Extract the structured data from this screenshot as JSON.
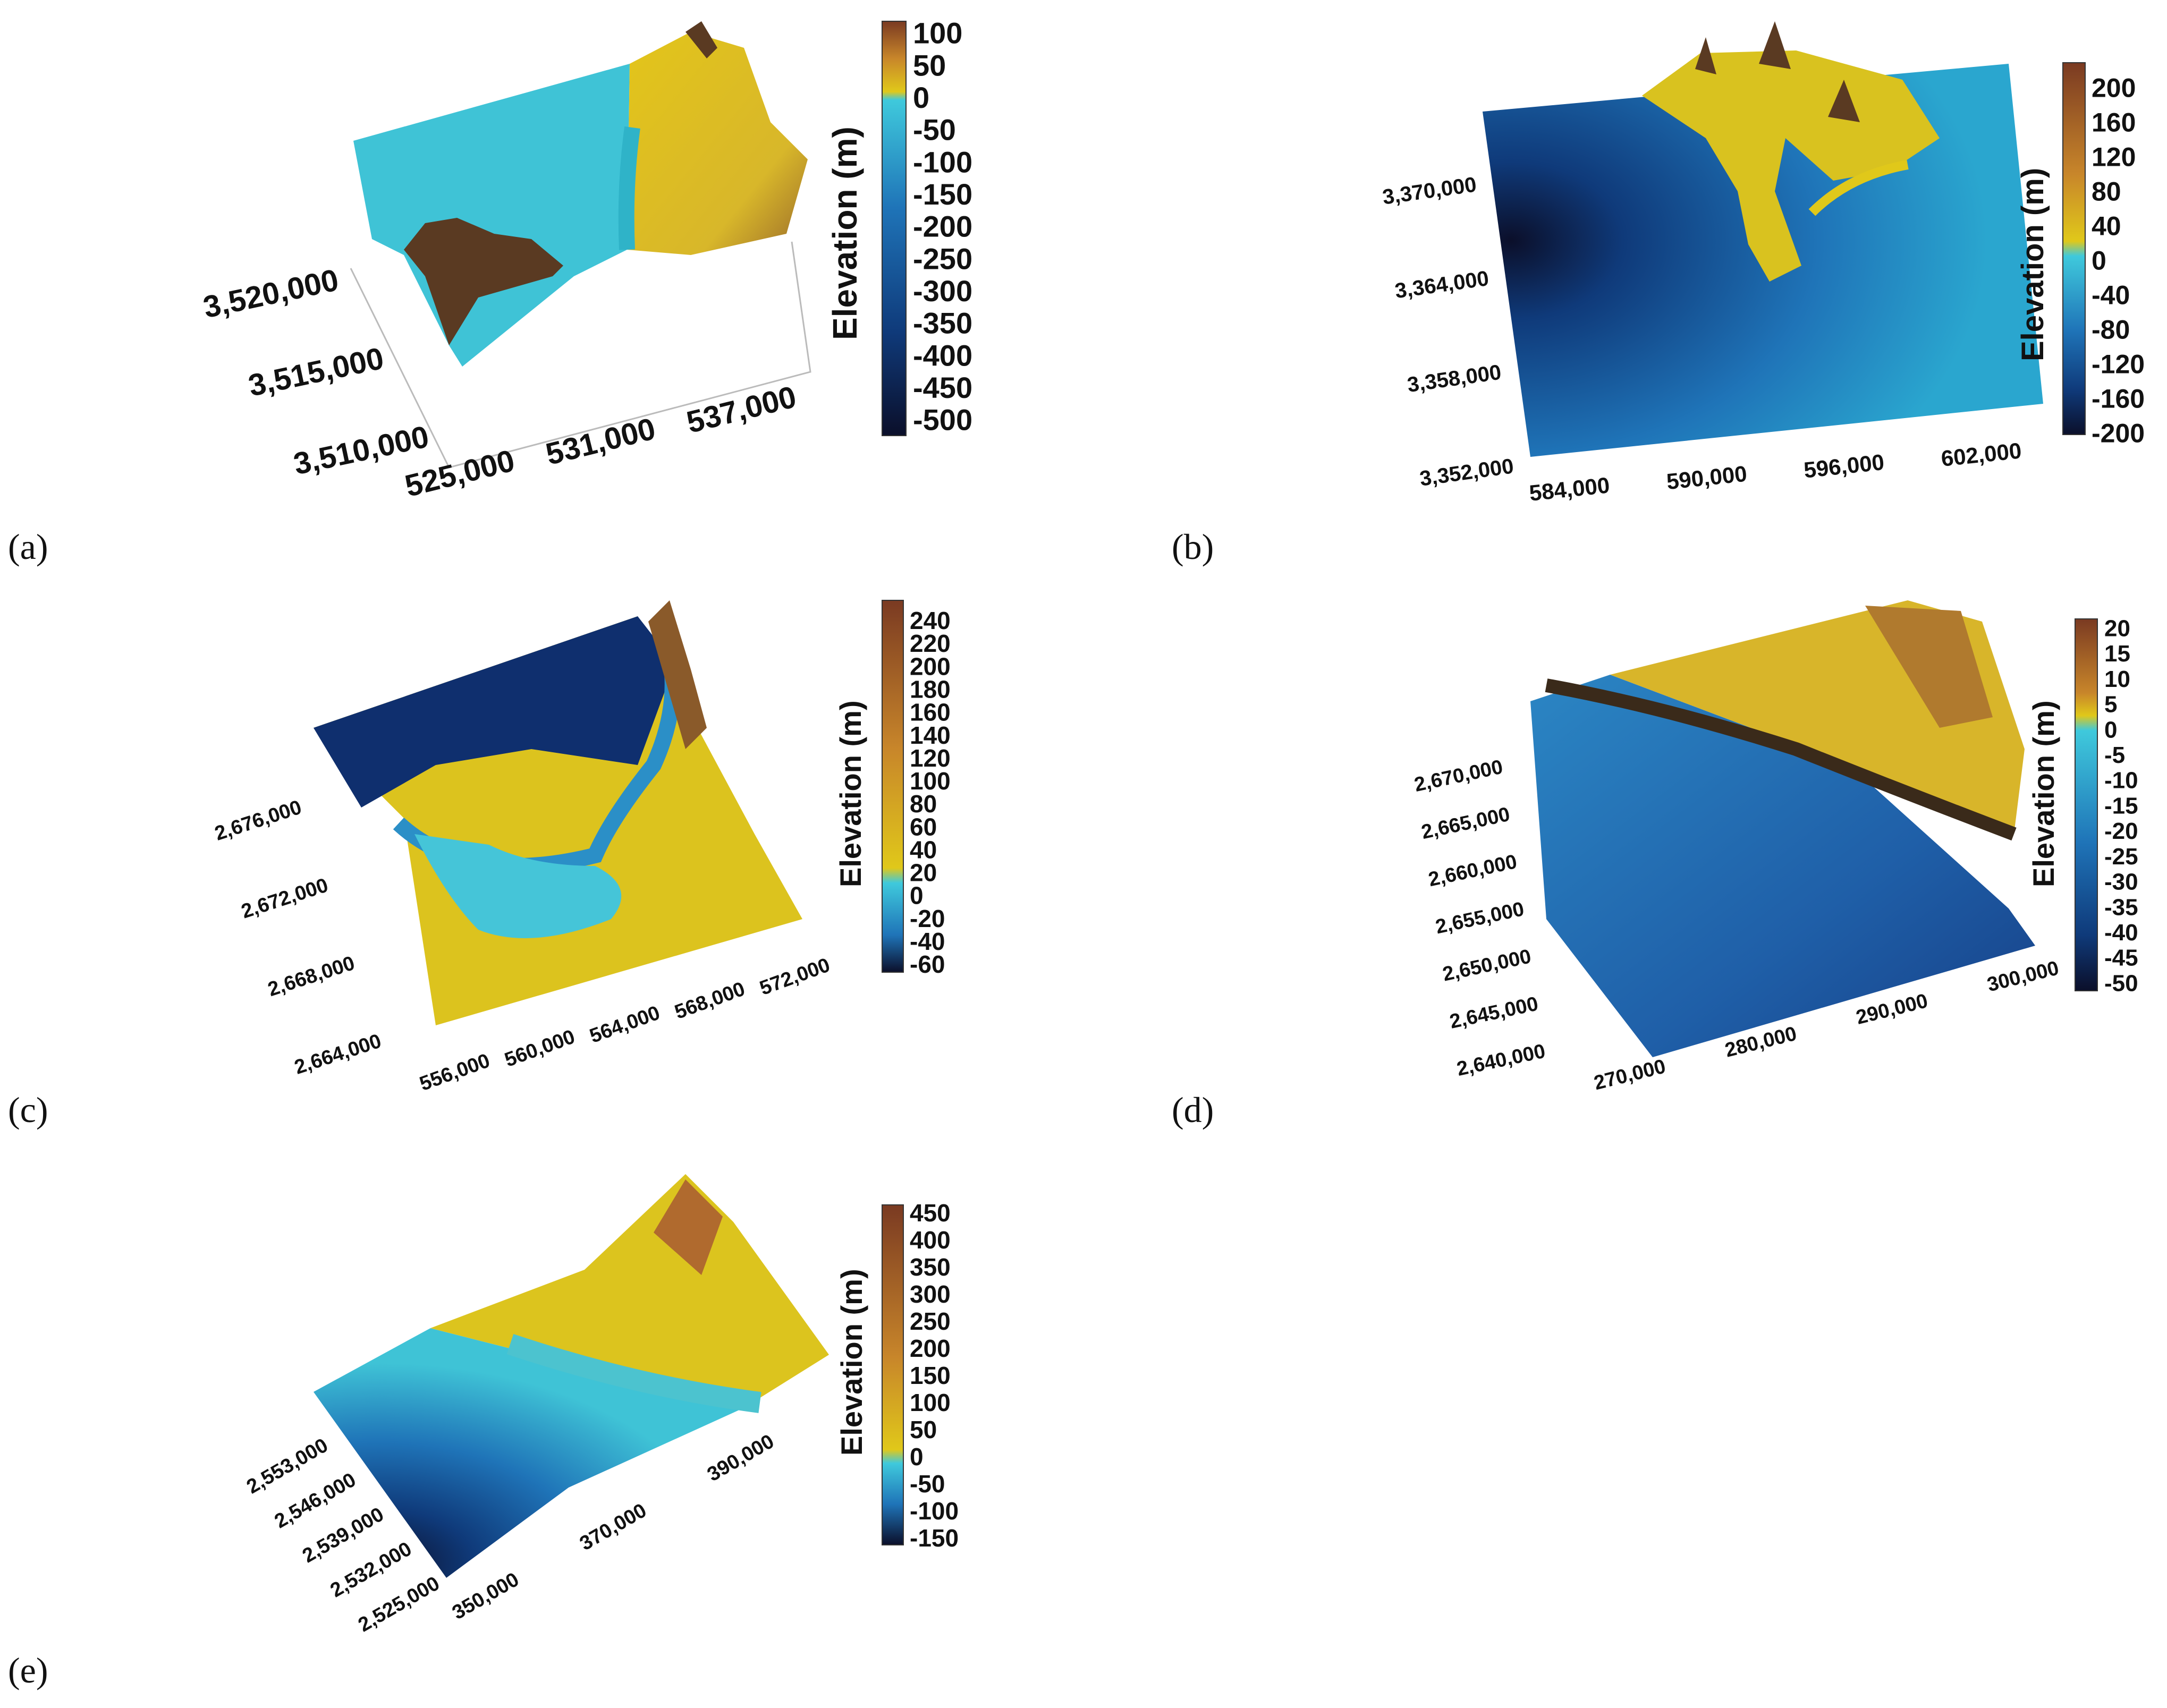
{
  "figure": {
    "colorbar_title": "Elevation (m)",
    "panels": [
      {
        "label": "(a)",
        "y_ticks": [
          "3,520,000",
          "3,515,000",
          "3,510,000"
        ],
        "x_ticks": [
          "525,000",
          "531,000",
          "537,000"
        ],
        "colorbar_ticks": [
          "100",
          "50",
          "0",
          "-50",
          "-100",
          "-150",
          "-200",
          "-250",
          "-300",
          "-350",
          "-400",
          "-450",
          "-500"
        ]
      },
      {
        "label": "(b)",
        "y_ticks": [
          "3,370,000",
          "3,364,000",
          "3,358,000",
          "3,352,000"
        ],
        "x_ticks": [
          "584,000",
          "590,000",
          "596,000",
          "602,000"
        ],
        "colorbar_ticks": [
          "200",
          "160",
          "120",
          "80",
          "40",
          "0",
          "-40",
          "-80",
          "-120",
          "-160",
          "-200"
        ]
      },
      {
        "label": "(c)",
        "y_ticks": [
          "2,676,000",
          "2,672,000",
          "2,668,000",
          "2,664,000"
        ],
        "x_ticks": [
          "556,000",
          "560,000",
          "564,000",
          "568,000",
          "572,000"
        ],
        "colorbar_ticks": [
          "240",
          "220",
          "200",
          "180",
          "160",
          "140",
          "120",
          "100",
          "80",
          "60",
          "40",
          "20",
          "0",
          "-20",
          "-40",
          "-60"
        ]
      },
      {
        "label": "(d)",
        "y_ticks": [
          "2,670,000",
          "2,665,000",
          "2,660,000",
          "2,655,000",
          "2,650,000",
          "2,645,000",
          "2,640,000"
        ],
        "x_ticks": [
          "270,000",
          "280,000",
          "290,000",
          "300,000"
        ],
        "colorbar_ticks": [
          "20",
          "15",
          "10",
          "5",
          "0",
          "-5",
          "-10",
          "-15",
          "-20",
          "-25",
          "-30",
          "-35",
          "-40",
          "-45",
          "-50"
        ]
      },
      {
        "label": "(e)",
        "y_ticks": [
          "2,553,000",
          "2,546,000",
          "2,539,000",
          "2,532,000",
          "2,525,000"
        ],
        "x_ticks": [
          "350,000",
          "370,000",
          "390,000"
        ],
        "colorbar_ticks": [
          "450",
          "400",
          "350",
          "300",
          "250",
          "200",
          "150",
          "100",
          "50",
          "0",
          "-50",
          "-100",
          "-150"
        ]
      }
    ],
    "colors": {
      "deep": "#0b0f2a",
      "navy": "#0f3a7a",
      "blue": "#1f74b8",
      "cyan": "#3fc9dc",
      "yellow": "#e0c81a",
      "orange": "#c8862a",
      "brown": "#7a3a22"
    }
  }
}
